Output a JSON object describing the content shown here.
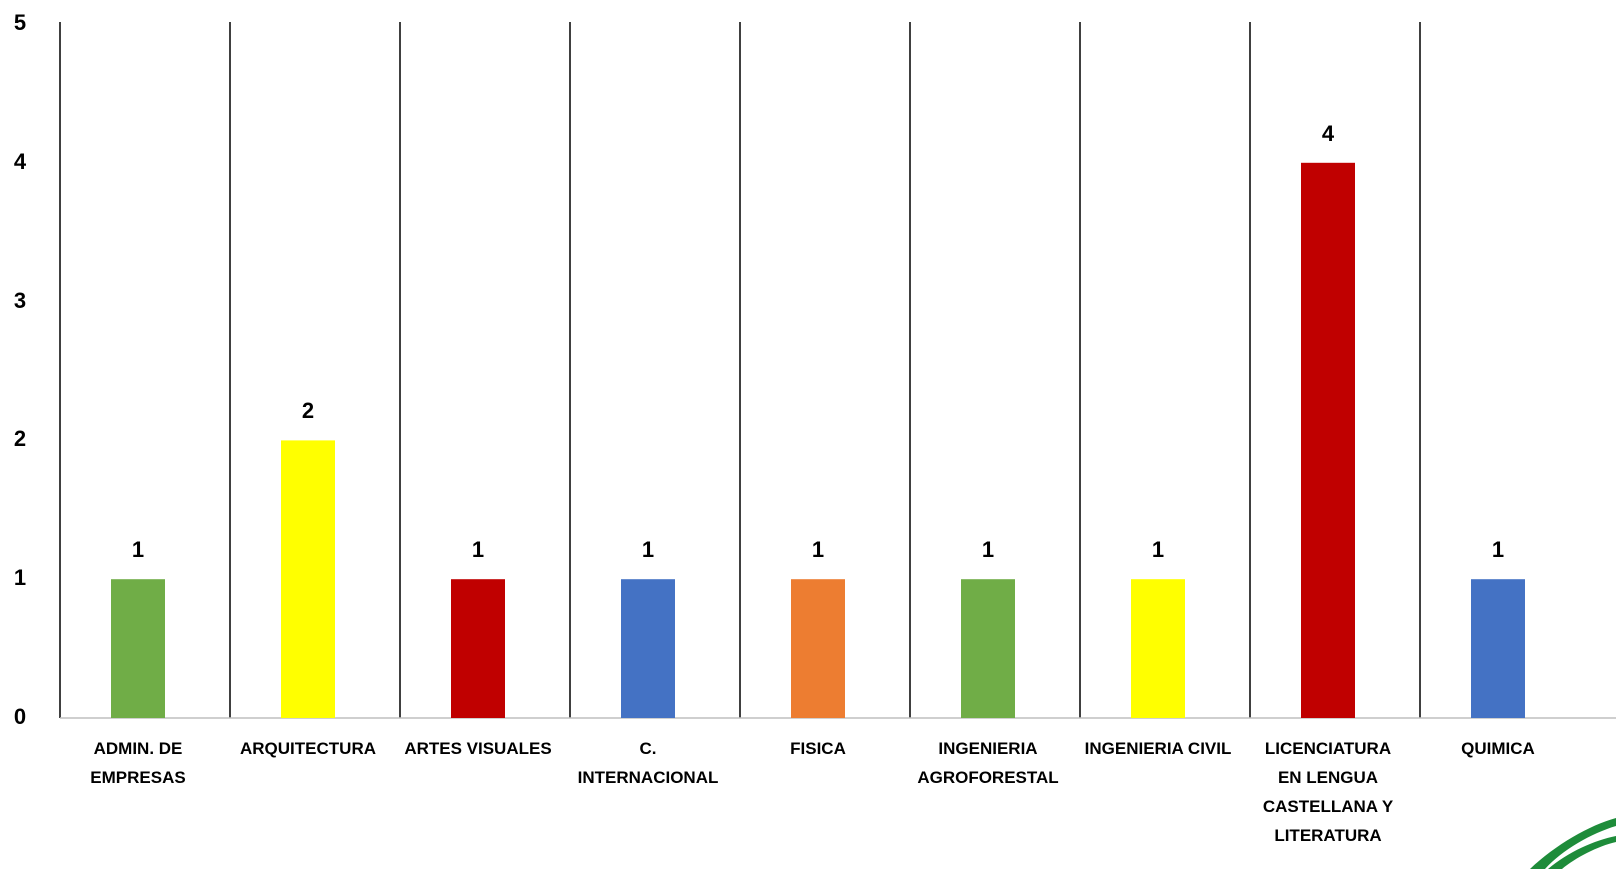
{
  "chart_data": {
    "type": "bar",
    "categories": [
      "ADMIN. DE\nEMPRESAS",
      "ARQUITECTURA",
      "ARTES VISUALES",
      "C.\nINTERNACIONAL",
      "FISICA",
      "INGENIERIA\nAGROFORESTAL",
      "INGENIERIA CIVIL",
      "LICENCIATURA\nEN LENGUA\nCASTELLANA Y\nLITERATURA",
      "QUIMICA"
    ],
    "values": [
      1,
      2,
      1,
      1,
      1,
      1,
      1,
      4,
      1
    ],
    "data_labels": [
      "1",
      "2",
      "1",
      "1",
      "1",
      "1",
      "1",
      "4",
      "1"
    ],
    "colors": [
      "#70ad47",
      "#ffff00",
      "#c00000",
      "#4472c4",
      "#ed7d31",
      "#70ad47",
      "#ffff00",
      "#c00000",
      "#4472c4"
    ],
    "y_ticks": [
      "0",
      "1",
      "2",
      "3",
      "4",
      "5"
    ],
    "ylim": [
      0,
      5
    ],
    "grid": "vertical category separators",
    "title": "",
    "xlabel": "",
    "ylabel": ""
  }
}
